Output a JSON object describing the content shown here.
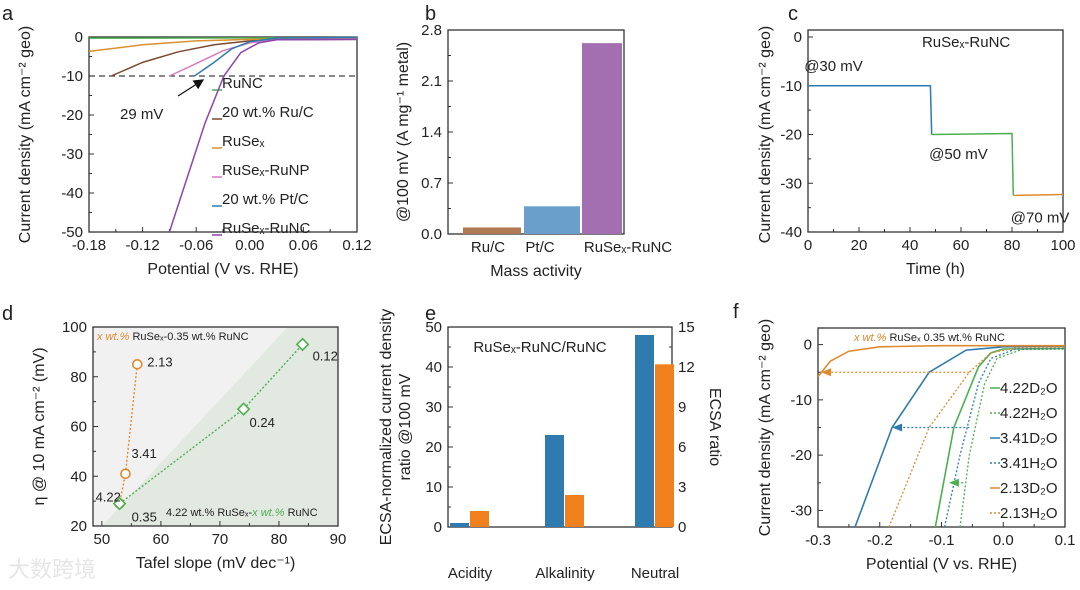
{
  "panel_letters": [
    "a",
    "b",
    "c",
    "d",
    "e",
    "f"
  ],
  "watermark": "大数跨境",
  "chart_data": [
    {
      "id": "a",
      "type": "line",
      "xlabel": "Potential (V vs.  RHE)",
      "ylabel": "Current density (mA cm⁻² geo)",
      "xlim": [
        -0.18,
        0.12
      ],
      "ylim": [
        -50,
        0
      ],
      "xticks": [
        -0.18,
        -0.12,
        -0.06,
        0,
        0.06,
        0.12
      ],
      "xtick_labels": [
        "-0.18",
        "-0.12",
        "-0.06",
        "0.00",
        "0.06",
        "0.12"
      ],
      "yticks": [
        0,
        -10,
        -20,
        -30,
        -40,
        -50
      ],
      "ytick_labels": [
        "0",
        "-10",
        "-20",
        "-30",
        "-40",
        "-50"
      ],
      "hline": -10,
      "annotation": {
        "text": "29 mV",
        "x": -0.029,
        "y": -10
      },
      "series": [
        {
          "name": "RuNC",
          "color": "#4caf50",
          "points": [
            [
              -0.18,
              -0.3
            ],
            [
              0.12,
              -0.2
            ]
          ]
        },
        {
          "name": "20 wt.% Ru/C",
          "color": "#7b4a2e",
          "points": [
            [
              -0.155,
              -10
            ],
            [
              -0.12,
              -6.5
            ],
            [
              -0.08,
              -3.8
            ],
            [
              -0.04,
              -2
            ],
            [
              0,
              -1
            ],
            [
              0.03,
              -0.7
            ],
            [
              0.12,
              -0.6
            ]
          ]
        },
        {
          "name": "RuSeₓ",
          "color": "#d9902f",
          "points": [
            [
              -0.18,
              -3.7
            ],
            [
              -0.12,
              -2
            ],
            [
              -0.06,
              -1
            ],
            [
              0,
              -0.6
            ],
            [
              0.12,
              -0.4
            ]
          ]
        },
        {
          "name": "RuSeₓ-RuNP",
          "color": "#d77cc0",
          "points": [
            [
              -0.09,
              -10
            ],
            [
              -0.06,
              -6.8
            ],
            [
              -0.03,
              -3.5
            ],
            [
              0,
              -1.5
            ],
            [
              0.03,
              -0.7
            ],
            [
              0.12,
              -0.5
            ]
          ]
        },
        {
          "name": "20 wt.% Pt/C",
          "color": "#2f7bb0",
          "points": [
            [
              -0.062,
              -10
            ],
            [
              -0.04,
              -6.5
            ],
            [
              -0.02,
              -3
            ],
            [
              0,
              -1.2
            ],
            [
              0.03,
              -0.3
            ],
            [
              0.12,
              -0.1
            ]
          ]
        },
        {
          "name": "RuSeₓ-RuNC",
          "color": "#8e44ad",
          "points": [
            [
              -0.09,
              -50
            ],
            [
              -0.07,
              -36
            ],
            [
              -0.05,
              -22
            ],
            [
              -0.029,
              -10
            ],
            [
              -0.01,
              -4
            ],
            [
              0.01,
              -1.5
            ],
            [
              0.03,
              -0.7
            ],
            [
              0.12,
              -0.6
            ]
          ]
        }
      ]
    },
    {
      "id": "b",
      "type": "bar",
      "xlabel": "Mass activity",
      "ylabel": "@100 mV (A mg⁻¹ metal)",
      "ylim": [
        0,
        2.8
      ],
      "yticks": [
        0,
        0.7,
        1.4,
        2.1,
        2.8
      ],
      "ytick_labels": [
        "0.0",
        "0.7",
        "1.4",
        "2.1",
        "2.8"
      ],
      "categories": [
        "Ru/C",
        "Pt/C",
        "RuSeₓ-RuNC"
      ],
      "values": [
        0.09,
        0.38,
        2.62
      ],
      "colors": [
        "#b07a55",
        "#6a9fcb",
        "#a36fb0"
      ]
    },
    {
      "id": "c",
      "type": "line",
      "title": "RuSeₓ-RuNC",
      "xlabel": "Time (h)",
      "ylabel": "Current density (mA cm⁻² geo)",
      "xlim": [
        0,
        100
      ],
      "ylim": [
        -40,
        0
      ],
      "xticks": [
        0,
        20,
        40,
        60,
        80,
        100
      ],
      "xtick_labels": [
        "0",
        "20",
        "40",
        "60",
        "80",
        "100"
      ],
      "yticks": [
        0,
        -10,
        -20,
        -30,
        -40
      ],
      "ytick_labels": [
        "0",
        "-10",
        "-20",
        "-30",
        "-40"
      ],
      "annotations": [
        {
          "text": "@30 mV",
          "x": 10,
          "y": -7
        },
        {
          "text": "@50 mV",
          "x": 59,
          "y": -25
        },
        {
          "text": "@70 mV",
          "x": 91,
          "y": -38
        }
      ],
      "series": [
        {
          "name": "@30 mV",
          "color": "#2f7bb0",
          "points": [
            [
              0,
              -10
            ],
            [
              48,
              -10
            ],
            [
              48.5,
              -20
            ]
          ]
        },
        {
          "name": "@50 mV",
          "color": "#4caf50",
          "points": [
            [
              48.5,
              -20
            ],
            [
              80,
              -19.8
            ],
            [
              80.5,
              -32.5
            ]
          ]
        },
        {
          "name": "@70 mV",
          "color": "#e08a2e",
          "points": [
            [
              80.5,
              -32.5
            ],
            [
              100,
              -32.3
            ]
          ]
        }
      ]
    },
    {
      "id": "d",
      "type": "scatter",
      "xlabel": "Tafel slope (mV dec⁻¹)",
      "ylabel": "η @ 10 mA cm⁻² (mV)",
      "xlim": [
        48.5,
        90
      ],
      "ylim": [
        20,
        100
      ],
      "xticks": [
        50,
        60,
        70,
        80,
        90
      ],
      "xtick_labels": [
        "50",
        "60",
        "70",
        "80",
        "90"
      ],
      "yticks": [
        20,
        40,
        60,
        80,
        100
      ],
      "ytick_labels": [
        "20",
        "40",
        "60",
        "80",
        "100"
      ],
      "legend_top": {
        "prefix": "x wt.%",
        "rest": "RuSeₓ-0.35 wt.% RuNC"
      },
      "legend_bottom": {
        "a": "4.22 wt.% RuSeₓ-",
        "b": "x wt.%",
        "c": "RuNC"
      },
      "series": [
        {
          "name": "x wt.% RuSeₓ-0.35 wt.% RuNC",
          "color": "#e08a2e",
          "marker": "circle",
          "points": [
            [
              56,
              85
            ],
            [
              54,
              41
            ],
            [
              53,
              29
            ]
          ],
          "labels": [
            "2.13",
            "3.41",
            "4.22"
          ]
        },
        {
          "name": "4.22 wt.% RuSeₓ-x wt.% RuNC",
          "color": "#4caf50",
          "marker": "diamond",
          "points": [
            [
              53,
              29
            ],
            [
              74,
              67
            ],
            [
              84,
              93
            ]
          ],
          "labels": [
            "0.35",
            "0.24",
            "0.12"
          ]
        }
      ]
    },
    {
      "id": "e",
      "type": "bar",
      "title": "RuSeₓ-RuNC/RuNC",
      "ylabel": "ECSA-normalized current density ratio @100 mV",
      "y2label": "ECSA ratio",
      "ylim": [
        0,
        50
      ],
      "y2lim": [
        0,
        15
      ],
      "yticks": [
        0,
        10,
        20,
        30,
        40,
        50
      ],
      "ytick_labels": [
        "0",
        "10",
        "20",
        "30",
        "40",
        "50"
      ],
      "y2ticks": [
        0,
        3,
        6,
        9,
        12,
        15
      ],
      "y2tick_labels": [
        "0",
        "3",
        "6",
        "9",
        "12",
        "15"
      ],
      "categories": [
        "Acidity",
        "Alkalinity",
        "Neutral"
      ],
      "series": [
        {
          "name": "ECSA-normalized current density ratio",
          "axis": "left",
          "color": "#2f7bb0",
          "values": [
            1,
            23,
            48
          ]
        },
        {
          "name": "ECSA ratio",
          "axis": "right",
          "color": "#f07f1d",
          "values": [
            1.2,
            2.4,
            12.2
          ]
        }
      ]
    },
    {
      "id": "f",
      "type": "line",
      "xlabel": "Potential (V vs. RHE)",
      "ylabel": "Current density (mA cm⁻² geo)",
      "xlim": [
        -0.3,
        0.1
      ],
      "ylim": [
        -33,
        3
      ],
      "xticks": [
        -0.3,
        -0.2,
        -0.1,
        0,
        0.1
      ],
      "xtick_labels": [
        "-0.3",
        "-0.2",
        "-0.1",
        "0.0",
        "0.1"
      ],
      "yticks": [
        0,
        -10,
        -20,
        -30
      ],
      "ytick_labels": [
        "0",
        "-10",
        "-20",
        "-30"
      ],
      "legend_top": {
        "prefix": "x wt.%",
        "rest": "RuSeₓ 0.35 wt.% RuNC"
      },
      "arrows": [
        {
          "color": "#e08a2e",
          "from": [
            -0.055,
            -5
          ],
          "to": [
            -0.295,
            -5
          ]
        },
        {
          "color": "#2f7bb0",
          "from": [
            -0.055,
            -15
          ],
          "to": [
            -0.18,
            -15
          ]
        },
        {
          "color": "#4caf50",
          "from": [
            -0.065,
            -25
          ],
          "to": [
            -0.088,
            -25
          ]
        }
      ],
      "series": [
        {
          "name": "4.22D₂O",
          "color": "#4caf50",
          "dash": false,
          "points": [
            [
              -0.11,
              -33
            ],
            [
              -0.08,
              -15
            ],
            [
              -0.04,
              -4
            ],
            [
              -0.02,
              -1.5
            ],
            [
              0,
              -0.8
            ],
            [
              0.1,
              -0.7
            ]
          ]
        },
        {
          "name": "4.22H₂O",
          "color": "#4caf50",
          "dash": true,
          "points": [
            [
              -0.07,
              -33
            ],
            [
              -0.055,
              -20
            ],
            [
              -0.03,
              -7
            ],
            [
              -0.01,
              -2.5
            ],
            [
              0.03,
              -0.9
            ],
            [
              0.1,
              -0.8
            ]
          ]
        },
        {
          "name": "3.41D₂O",
          "color": "#2f7bb0",
          "dash": false,
          "points": [
            [
              -0.24,
              -33
            ],
            [
              -0.18,
              -15
            ],
            [
              -0.12,
              -5
            ],
            [
              -0.06,
              -1
            ],
            [
              0,
              -0.4
            ],
            [
              0.1,
              -0.3
            ]
          ]
        },
        {
          "name": "3.41H₂O",
          "color": "#2f7bb0",
          "dash": true,
          "points": [
            [
              -0.095,
              -33
            ],
            [
              -0.07,
              -20
            ],
            [
              -0.04,
              -7
            ],
            [
              -0.02,
              -2.5
            ],
            [
              0.02,
              -0.8
            ],
            [
              0.1,
              -0.7
            ]
          ]
        },
        {
          "name": "2.13D₂O",
          "color": "#e08a2e",
          "dash": false,
          "points": [
            [
              -0.3,
              -5.8
            ],
            [
              -0.28,
              -3
            ],
            [
              -0.25,
              -1.2
            ],
            [
              -0.2,
              -0.4
            ],
            [
              -0.1,
              -0.2
            ],
            [
              0.1,
              -0.2
            ]
          ]
        },
        {
          "name": "2.13H₂O",
          "color": "#e08a2e",
          "dash": true,
          "points": [
            [
              -0.185,
              -33
            ],
            [
              -0.12,
              -15
            ],
            [
              -0.055,
              -5
            ],
            [
              -0.02,
              -1.5
            ],
            [
              0.02,
              -0.6
            ],
            [
              0.1,
              -0.5
            ]
          ]
        }
      ]
    }
  ]
}
